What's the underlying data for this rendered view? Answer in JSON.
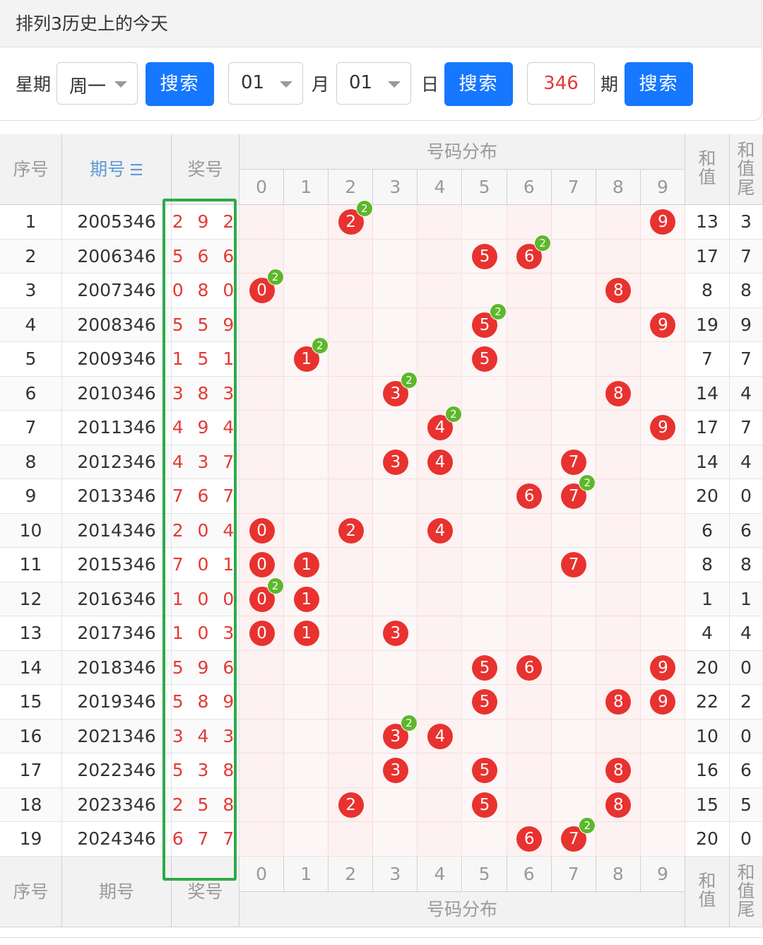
{
  "page_title": "排列3历史上的今天",
  "filters": {
    "weekday_label": "星期",
    "weekday_value": "周一",
    "search_label": "搜索",
    "month_value": "01",
    "month_label": "月",
    "day_value": "01",
    "day_label": "日",
    "period_value": "346",
    "period_label": "期"
  },
  "table": {
    "headers": {
      "index": "序号",
      "period": "期号",
      "period_sort_icon": "sort-icon",
      "award": "奖号",
      "distribution": "号码分布",
      "sum": "和值",
      "sum_tail": "和值尾"
    },
    "digits": [
      "0",
      "1",
      "2",
      "3",
      "4",
      "5",
      "6",
      "7",
      "8",
      "9"
    ],
    "rows": [
      {
        "idx": "1",
        "period": "2005346",
        "award": "292",
        "sum": "13",
        "tail": "3"
      },
      {
        "idx": "2",
        "period": "2006346",
        "award": "566",
        "sum": "17",
        "tail": "7"
      },
      {
        "idx": "3",
        "period": "2007346",
        "award": "080",
        "sum": "8",
        "tail": "8"
      },
      {
        "idx": "4",
        "period": "2008346",
        "award": "559",
        "sum": "19",
        "tail": "9"
      },
      {
        "idx": "5",
        "period": "2009346",
        "award": "151",
        "sum": "7",
        "tail": "7"
      },
      {
        "idx": "6",
        "period": "2010346",
        "award": "383",
        "sum": "14",
        "tail": "4"
      },
      {
        "idx": "7",
        "period": "2011346",
        "award": "494",
        "sum": "17",
        "tail": "7"
      },
      {
        "idx": "8",
        "period": "2012346",
        "award": "437",
        "sum": "14",
        "tail": "4"
      },
      {
        "idx": "9",
        "period": "2013346",
        "award": "767",
        "sum": "20",
        "tail": "0"
      },
      {
        "idx": "10",
        "period": "2014346",
        "award": "204",
        "sum": "6",
        "tail": "6"
      },
      {
        "idx": "11",
        "period": "2015346",
        "award": "701",
        "sum": "8",
        "tail": "8"
      },
      {
        "idx": "12",
        "period": "2016346",
        "award": "100",
        "sum": "1",
        "tail": "1"
      },
      {
        "idx": "13",
        "period": "2017346",
        "award": "103",
        "sum": "4",
        "tail": "4"
      },
      {
        "idx": "14",
        "period": "2018346",
        "award": "596",
        "sum": "20",
        "tail": "0"
      },
      {
        "idx": "15",
        "period": "2019346",
        "award": "589",
        "sum": "22",
        "tail": "2"
      },
      {
        "idx": "16",
        "period": "2021346",
        "award": "343",
        "sum": "10",
        "tail": "0"
      },
      {
        "idx": "17",
        "period": "2022346",
        "award": "538",
        "sum": "16",
        "tail": "6"
      },
      {
        "idx": "18",
        "period": "2023346",
        "award": "258",
        "sum": "15",
        "tail": "5"
      },
      {
        "idx": "19",
        "period": "2024346",
        "award": "677",
        "sum": "20",
        "tail": "0"
      }
    ]
  },
  "colors": {
    "ball": "#e8322f",
    "repeat_badge": "#5cb82a",
    "button": "#1677ff",
    "highlight_box": "#2eaa4a"
  }
}
